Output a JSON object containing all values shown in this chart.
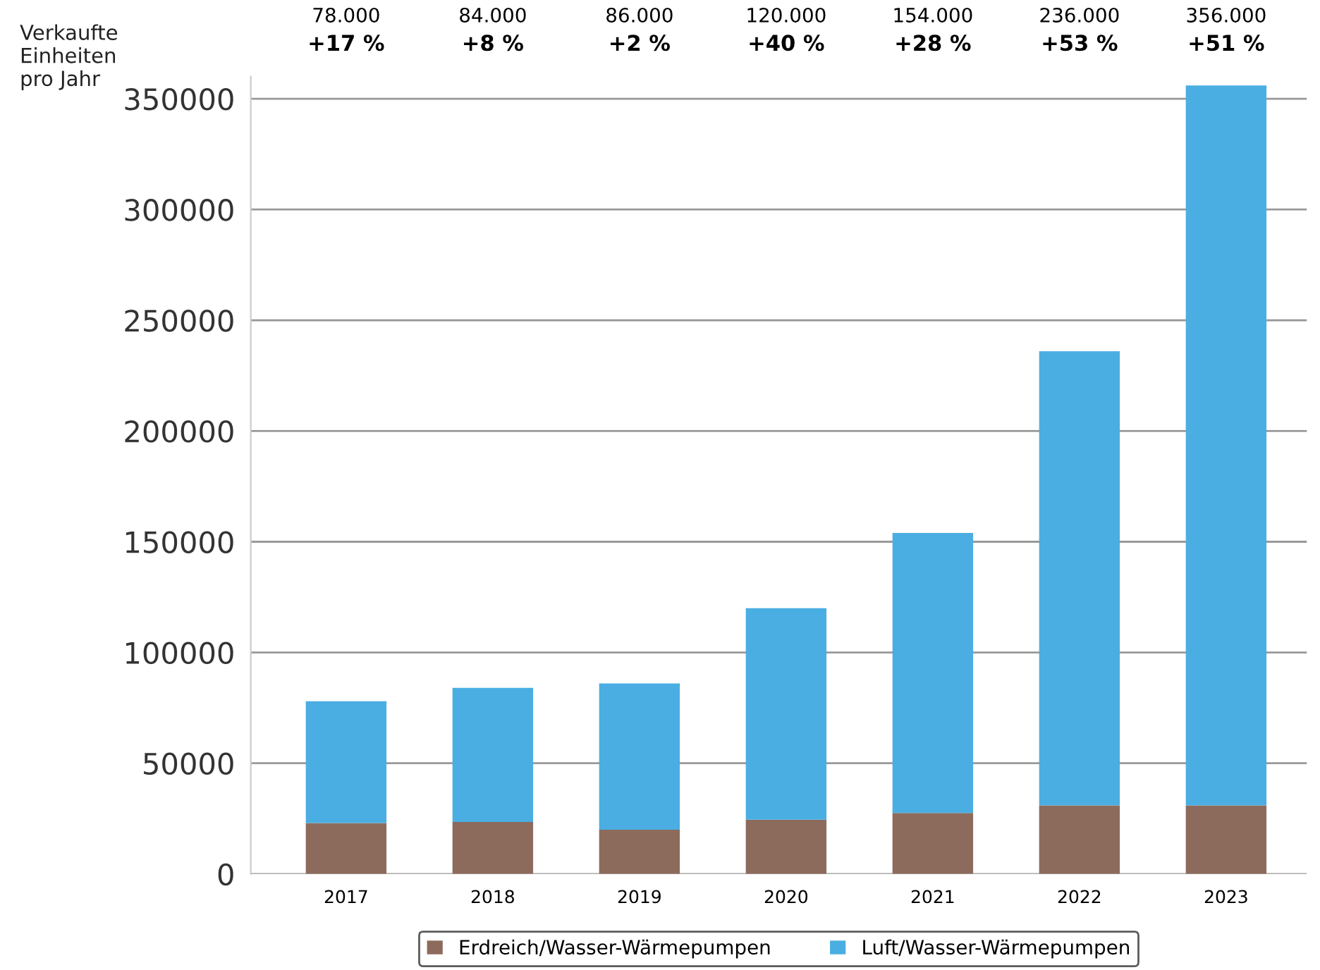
{
  "chart_data": {
    "type": "bar",
    "stacked": true,
    "ylabel": "Verkaufte\nEinheiten\npro Jahr",
    "categories": [
      "2017",
      "2018",
      "2019",
      "2020",
      "2021",
      "2022",
      "2023"
    ],
    "series": [
      {
        "name": "Erdreich/Wasser-Wärmepumpen",
        "color": "#8c6b5d",
        "values": [
          23000,
          23500,
          20000,
          24500,
          27500,
          31000,
          31000
        ]
      },
      {
        "name": "Luft/Wasser-Wärmepumpen",
        "color": "#4aaee2",
        "values": [
          55000,
          60500,
          66000,
          95500,
          126500,
          205000,
          325000
        ]
      }
    ],
    "annotations": [
      "78.000",
      "+17 %",
      "84.000",
      "+8 %",
      "86.000",
      "+2 %",
      "120.000",
      "+40 %",
      "154.000",
      "+28 %",
      "236.000",
      "+53 %",
      "356.000",
      "+51 %"
    ],
    "ylim": [
      0,
      360000
    ],
    "yticks": [
      0,
      50000,
      100000,
      150000,
      200000,
      250000,
      300000,
      350000
    ],
    "grid": "y",
    "legend": "bottom"
  }
}
